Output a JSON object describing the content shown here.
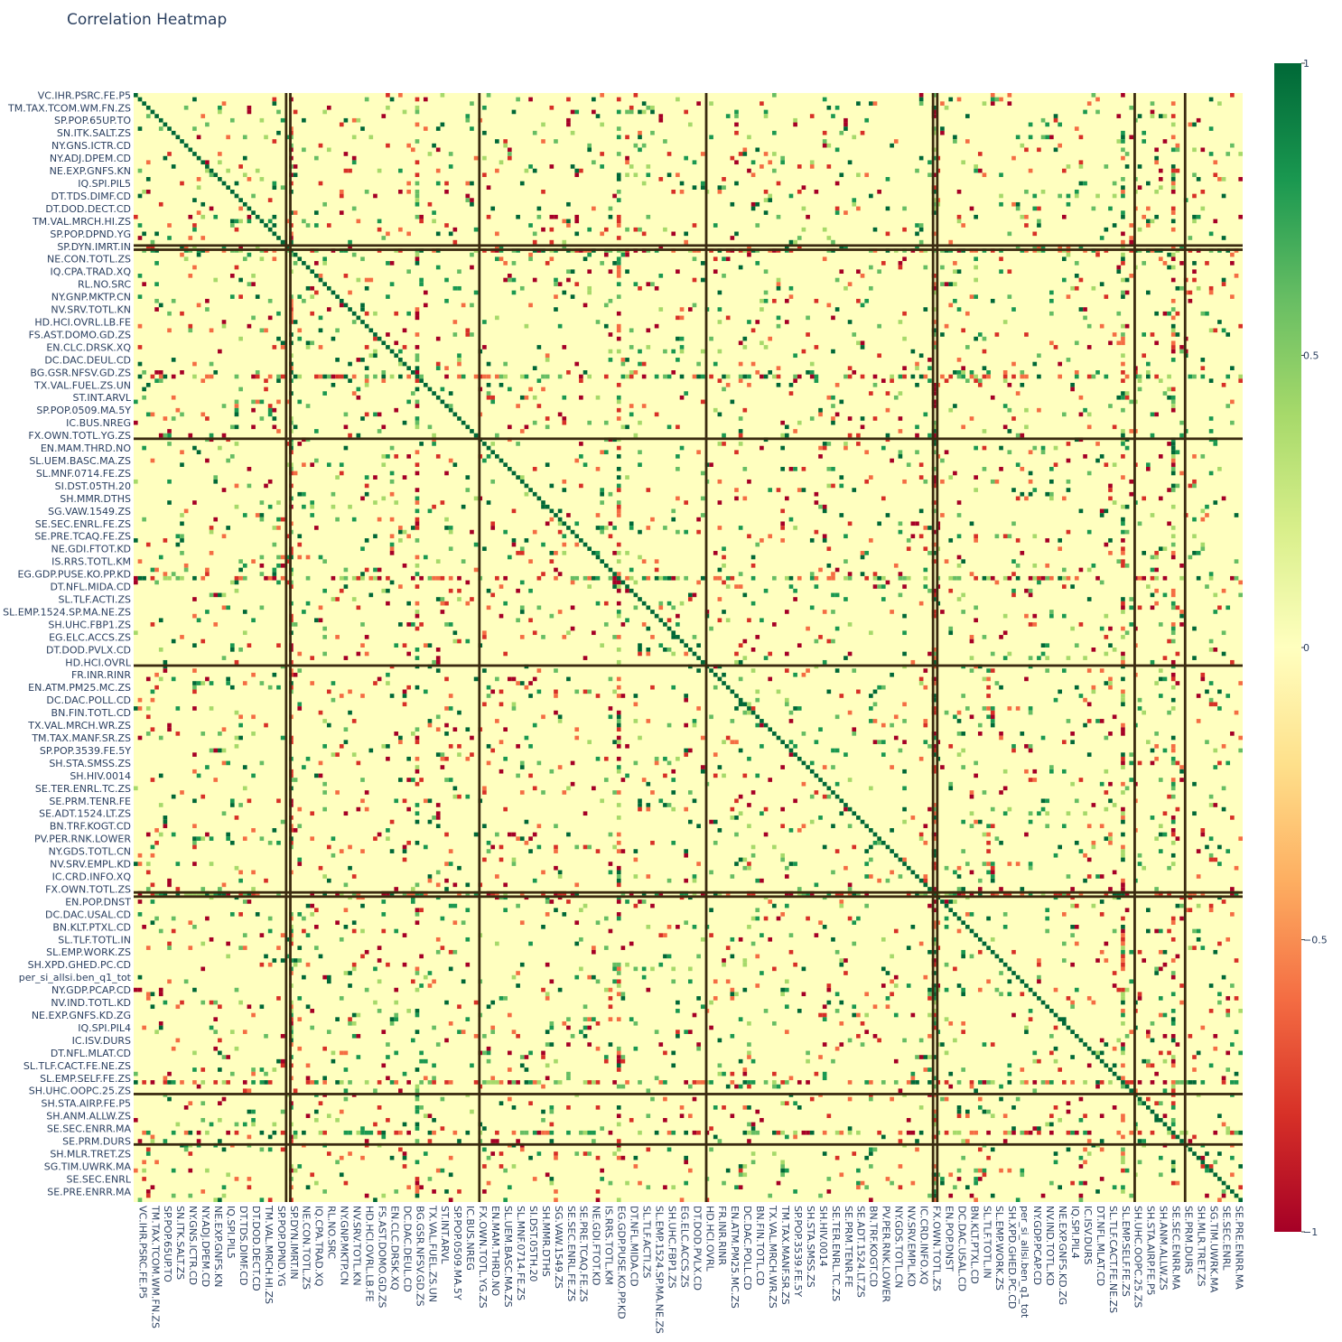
{
  "chart_data": {
    "type": "heatmap",
    "title": "Correlation Heatmap",
    "xlabel": "",
    "ylabel": "",
    "colorscale": "RdYlGn",
    "colors": {
      "neg_extreme": "#a50026",
      "neg_mid": "#f46d43",
      "neutral": "#ffffbf",
      "pos_mid": "#66bd63",
      "pos_extreme": "#006837",
      "dark_line": "#3a2a10"
    },
    "zlim": [
      -1,
      1
    ],
    "colorbar_ticks": [
      {
        "value": 1,
        "label": "1"
      },
      {
        "value": 0.5,
        "label": "0.5"
      },
      {
        "value": 0,
        "label": "0"
      },
      {
        "value": -0.5,
        "label": "−0.5"
      },
      {
        "value": -1,
        "label": "−1"
      }
    ],
    "y_tick_labels": [
      "VC.IHR.PSRC.FE.P5",
      "TM.TAX.TCOM.WM.FN.ZS",
      "SP.POP.65UP.TO",
      "SN.ITK.SALT.ZS",
      "NY.GNS.ICTR.CD",
      "NY.ADJ.DPEM.CD",
      "NE.EXP.GNFS.KN",
      "IQ.SPI.PIL5",
      "DT.TDS.DIMF.CD",
      "DT.DOD.DECT.CD",
      "TM.VAL.MRCH.HI.ZS",
      "SP.POP.DPND.YG",
      "SP.DYN.IMRT.IN",
      "NE.CON.TOTL.ZS",
      "IQ.CPA.TRAD.XQ",
      "RL.NO.SRC",
      "NY.GNP.MKTP.CN",
      "NV.SRV.TOTL.KN",
      "HD.HCI.OVRL.LB.FE",
      "FS.AST.DOMO.GD.ZS",
      "EN.CLC.DRSK.XQ",
      "DC.DAC.DEUL.CD",
      "BG.GSR.NFSV.GD.ZS",
      "TX.VAL.FUEL.ZS.UN",
      "ST.INT.ARVL",
      "SP.POP.0509.MA.5Y",
      "IC.BUS.NREG",
      "FX.OWN.TOTL.YG.ZS",
      "EN.MAM.THRD.NO",
      "SL.UEM.BASC.MA.ZS",
      "SL.MNF.0714.FE.ZS",
      "SI.DST.05TH.20",
      "SH.MMR.DTHS",
      "SG.VAW.1549.ZS",
      "SE.SEC.ENRL.FE.ZS",
      "SE.PRE.TCAQ.FE.ZS",
      "NE.GDI.FTOT.KD",
      "IS.RRS.TOTL.KM",
      "EG.GDP.PUSE.KO.PP.KD",
      "DT.NFL.MIDA.CD",
      "SL.TLF.ACTI.ZS",
      "SL.EMP.1524.SP.MA.NE.ZS",
      "SH.UHC.FBP1.ZS",
      "EG.ELC.ACCS.ZS",
      "DT.DOD.PVLX.CD",
      "HD.HCI.OVRL",
      "FR.INR.RINR",
      "EN.ATM.PM25.MC.ZS",
      "DC.DAC.POLL.CD",
      "BN.FIN.TOTL.CD",
      "TX.VAL.MRCH.WR.ZS",
      "TM.TAX.MANF.SR.ZS",
      "SP.POP.3539.FE.5Y",
      "SH.STA.SMSS.ZS",
      "SH.HIV.0014",
      "SE.TER.ENRL.TC.ZS",
      "SE.PRM.TENR.FE",
      "SE.ADT.1524.LT.ZS",
      "BN.TRF.KOGT.CD",
      "PV.PER.RNK.LOWER",
      "NY.GDS.TOTL.CN",
      "NV.SRV.EMPL.KD",
      "IC.CRD.INFO.XQ",
      "FX.OWN.TOTL.ZS",
      "EN.POP.DNST",
      "DC.DAC.USAL.CD",
      "BN.KLT.PTXL.CD",
      "SL.TLF.TOTL.IN",
      "SL.EMP.WORK.ZS",
      "SH.XPD.GHED.PC.CD",
      "per_si_allsi.ben_q1_tot",
      "NY.GDP.PCAP.CD",
      "NV.IND.TOTL.KD",
      "NE.EXP.GNFS.KD.ZG",
      "IQ.SPI.PIL4",
      "IC.ISV.DURS",
      "DT.NFL.MLAT.CD",
      "SL.TLF.CACT.FE.NE.ZS",
      "SL.EMP.SELF.FE.ZS",
      "SH.UHC.OOPC.25.ZS",
      "SH.STA.AIRP.FE.P5",
      "SH.ANM.ALLW.ZS",
      "SE.SEC.ENRR.MA",
      "SE.PRM.DURS",
      "SH.MLR.TRET.ZS",
      "SG.TIM.UWRK.MA",
      "SE.SEC.ENRL",
      "SE.PRE.ENRR.MA"
    ],
    "x_tick_labels": [
      "VC.IHR.PSRC.FE.P5",
      "TM.TAX.TCOM.WM.FN.ZS",
      "SP.POP.65UP.TO",
      "SN.ITK.SALT.ZS",
      "NY.GNS.ICTR.CD",
      "NY.ADJ.DPEM.CD",
      "NE.EXP.GNFS.KN",
      "IQ.SPI.PIL5",
      "DT.TDS.DIMF.CD",
      "DT.DOD.DECT.CD",
      "TM.VAL.MRCH.HI.ZS",
      "SP.POP.DPND.YG",
      "SP.DYN.IMRT.IN",
      "NE.CON.TOTL.ZS",
      "IQ.CPA.TRAD.XQ",
      "RL.NO.SRC",
      "NY.GNP.MKTP.CN",
      "NV.SRV.TOTL.KN",
      "HD.HCI.OVRL.LB.FE",
      "FS.AST.DOMO.GD.ZS",
      "EN.CLC.DRSK.XQ",
      "DC.DAC.DEUL.CD",
      "BG.GSR.NFSV.GD.ZS",
      "TX.VAL.FUEL.ZS.UN",
      "ST.INT.ARVL",
      "SP.POP.0509.MA.5Y",
      "IC.BUS.NREG",
      "FX.OWN.TOTL.YG.ZS",
      "EN.MAM.THRD.NO",
      "SL.UEM.BASC.MA.ZS",
      "SL.MNF.0714.FE.ZS",
      "SI.DST.05TH.20",
      "SH.MMR.DTHS",
      "SG.VAW.1549.ZS",
      "SE.SEC.ENRL.FE.ZS",
      "SE.PRE.TCAQ.FE.ZS",
      "NE.GDI.FTOT.KD",
      "IS.RRS.TOTL.KM",
      "EG.GDP.PUSE.KO.PP.KD",
      "DT.NFL.MIDA.CD",
      "SL.TLF.ACTI.ZS",
      "SL.EMP.1524.SP.MA.NE.ZS",
      "SH.UHC.FBP1.ZS",
      "EG.ELC.ACCS.ZS",
      "DT.DOD.PVLX.CD",
      "HD.HCI.OVRL",
      "FR.INR.RINR",
      "EN.ATM.PM25.MC.ZS",
      "DC.DAC.POLL.CD",
      "BN.FIN.TOTL.CD",
      "TX.VAL.MRCH.WR.ZS",
      "TM.TAX.MANF.SR.ZS",
      "SP.POP.3539.FE.5Y",
      "SH.STA.SMSS.ZS",
      "SH.HIV.0014",
      "SE.TER.ENRL.TC.ZS",
      "SE.PRM.TENR.FE",
      "SE.ADT.1524.LT.ZS",
      "BN.TRF.KOGT.CD",
      "PV.PER.RNK.LOWER",
      "NY.GDS.TOTL.CN",
      "NV.SRV.EMPL.KD",
      "IC.CRD.INFO.XQ",
      "FX.OWN.TOTL.ZS",
      "EN.POP.DNST",
      "DC.DAC.USAL.CD",
      "BN.KLT.PTXL.CD",
      "SL.TLF.TOTL.IN",
      "SL.EMP.WORK.ZS",
      "SH.XPD.GHED.PC.CD",
      "per_si_allsi.ben_q1_tot",
      "NY.GDP.PCAP.CD",
      "NV.IND.TOTL.KD",
      "NE.EXP.GNFS.KD.ZG",
      "IQ.SPI.PIL4",
      "IC.ISV.DURS",
      "DT.NFL.MLAT.CD",
      "SL.TLF.CACT.FE.NE.ZS",
      "SL.EMP.SELF.FE.ZS",
      "SH.UHC.OOPC.25.ZS",
      "SH.STA.AIRP.FE.P5",
      "SH.ANM.ALLW.ZS",
      "SE.SEC.ENRR.MA",
      "SE.PRM.DURS",
      "SH.MLR.TRET.ZS",
      "SG.TIM.UWRK.MA",
      "SE.SEC.ENRL",
      "SE.PRE.ENRR.MA"
    ],
    "notes_on_pattern": {
      "diagonal_value": 1,
      "typical_offdiagonal": 0,
      "strong_variable_bands": [
        "SP.DYN.IMRT.IN",
        "BG.GSR.NFSV.GD.ZS",
        "FX.OWN.TOTL.ZS",
        "EG.GDP.PUSE.KO.PP.KD",
        "SL.EMP.SELF.FE.ZS",
        "SE.SEC.ENRR.MA"
      ]
    }
  }
}
